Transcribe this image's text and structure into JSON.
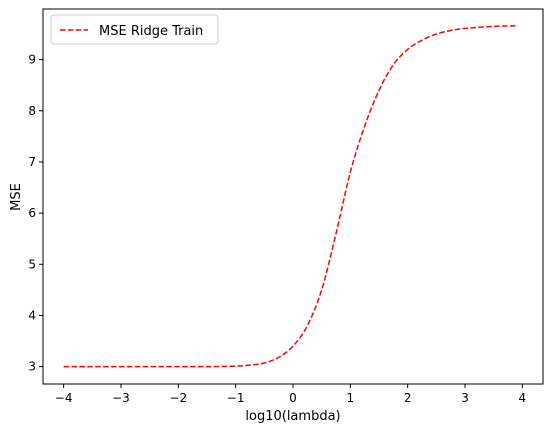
{
  "chart_data": {
    "type": "line",
    "title": "",
    "xlabel": "log10(lambda)",
    "ylabel": "MSE",
    "xlim": [
      -4.36,
      4.36
    ],
    "ylim": [
      2.66,
      9.99
    ],
    "xticks": [
      -4,
      -3,
      -2,
      -1,
      0,
      1,
      2,
      3,
      4
    ],
    "yticks": [
      3,
      4,
      5,
      6,
      7,
      8,
      9
    ],
    "grid": false,
    "legend": {
      "position": "top-left",
      "entries": [
        "MSE Ridge Train"
      ]
    },
    "series": [
      {
        "name": "MSE Ridge Train",
        "color": "#ff0000",
        "style": "dashed",
        "points": [
          [
            -4.0,
            3.0
          ],
          [
            -3.5,
            3.0
          ],
          [
            -3.0,
            3.0
          ],
          [
            -2.5,
            3.0
          ],
          [
            -2.0,
            3.0
          ],
          [
            -1.5,
            3.0
          ],
          [
            -1.0,
            3.01
          ],
          [
            -0.75,
            3.03
          ],
          [
            -0.5,
            3.07
          ],
          [
            -0.25,
            3.18
          ],
          [
            0.0,
            3.4
          ],
          [
            0.25,
            3.8
          ],
          [
            0.5,
            4.5
          ],
          [
            0.75,
            5.6
          ],
          [
            1.0,
            6.8
          ],
          [
            1.25,
            7.7
          ],
          [
            1.5,
            8.4
          ],
          [
            1.75,
            8.9
          ],
          [
            2.0,
            9.2
          ],
          [
            2.25,
            9.38
          ],
          [
            2.5,
            9.5
          ],
          [
            2.75,
            9.57
          ],
          [
            3.0,
            9.61
          ],
          [
            3.5,
            9.65
          ],
          [
            3.92,
            9.66
          ]
        ]
      }
    ]
  }
}
